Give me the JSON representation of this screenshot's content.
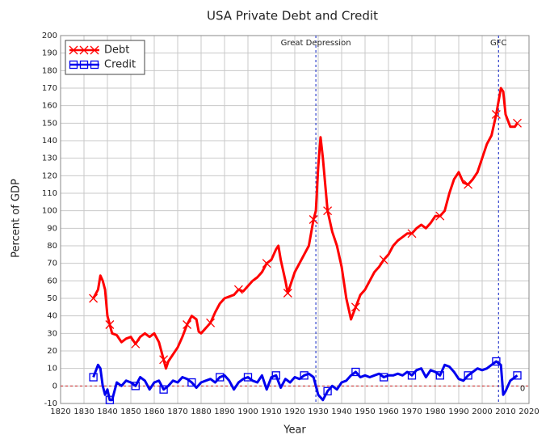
{
  "chart_data": {
    "type": "line",
    "title": "USA Private Debt and Credit",
    "xlabel": "Year",
    "ylabel": "Percent of GDP",
    "xlim": [
      1820,
      2020
    ],
    "xticks": [
      1820,
      1830,
      1840,
      1850,
      1860,
      1870,
      1880,
      1890,
      1900,
      1910,
      1920,
      1930,
      1940,
      1950,
      1960,
      1970,
      1980,
      1990,
      2000,
      2010,
      2020
    ],
    "ylim": [
      -10,
      200
    ],
    "yticks": [
      -10,
      0,
      10,
      20,
      30,
      40,
      50,
      60,
      70,
      80,
      90,
      100,
      110,
      120,
      130,
      140,
      150,
      160,
      170,
      180,
      190,
      200
    ],
    "grid": true,
    "legend": "upper left",
    "vlines": [
      {
        "x": 1929,
        "label": "Great Depression",
        "color": "#3344cc"
      },
      {
        "x": 2007,
        "label": "GFC",
        "color": "#3344cc"
      }
    ],
    "hlines": [
      {
        "y": 0,
        "label": "0",
        "color": "#cc2222"
      }
    ],
    "series": [
      {
        "name": "Debt",
        "color": "#ff0000",
        "marker": "x",
        "x": [
          1834,
          1836,
          1837,
          1838,
          1839,
          1840,
          1841,
          1842,
          1844,
          1846,
          1848,
          1850,
          1852,
          1854,
          1856,
          1858,
          1860,
          1862,
          1864,
          1865,
          1866,
          1868,
          1870,
          1872,
          1874,
          1876,
          1878,
          1879,
          1880,
          1882,
          1884,
          1886,
          1888,
          1890,
          1892,
          1894,
          1896,
          1898,
          1900,
          1902,
          1904,
          1906,
          1908,
          1910,
          1912,
          1913,
          1914,
          1916,
          1917,
          1918,
          1920,
          1922,
          1924,
          1926,
          1928,
          1929,
          1930,
          1931,
          1932,
          1933,
          1934,
          1936,
          1938,
          1940,
          1942,
          1944,
          1946,
          1948,
          1950,
          1952,
          1954,
          1956,
          1958,
          1960,
          1962,
          1964,
          1966,
          1968,
          1970,
          1972,
          1974,
          1976,
          1978,
          1980,
          1982,
          1984,
          1986,
          1988,
          1990,
          1992,
          1994,
          1996,
          1998,
          2000,
          2002,
          2004,
          2006,
          2008,
          2009,
          2010,
          2012,
          2014,
          2015
        ],
        "values": [
          50,
          55,
          63,
          60,
          55,
          40,
          35,
          30,
          29,
          25,
          27,
          28,
          24,
          28,
          30,
          28,
          30,
          25,
          15,
          10,
          14,
          18,
          22,
          28,
          35,
          40,
          38,
          31,
          30,
          33,
          36,
          42,
          47,
          50,
          51,
          52,
          55,
          54,
          57,
          60,
          62,
          65,
          70,
          72,
          78,
          80,
          72,
          60,
          53,
          57,
          65,
          70,
          75,
          80,
          95,
          100,
          125,
          142,
          130,
          115,
          100,
          88,
          80,
          68,
          50,
          38,
          45,
          52,
          55,
          60,
          65,
          68,
          72,
          75,
          80,
          83,
          85,
          87,
          87,
          90,
          92,
          90,
          93,
          97,
          97,
          100,
          110,
          118,
          122,
          116,
          115,
          118,
          122,
          130,
          138,
          143,
          155,
          170,
          168,
          155,
          148,
          148,
          150
        ]
      },
      {
        "name": "Credit",
        "color": "#0000ee",
        "marker": "s",
        "x": [
          1834,
          1836,
          1837,
          1838,
          1839,
          1840,
          1841,
          1842,
          1844,
          1846,
          1848,
          1850,
          1852,
          1854,
          1856,
          1858,
          1860,
          1862,
          1864,
          1866,
          1868,
          1870,
          1872,
          1874,
          1876,
          1878,
          1880,
          1882,
          1884,
          1886,
          1888,
          1890,
          1892,
          1894,
          1896,
          1898,
          1900,
          1902,
          1904,
          1906,
          1908,
          1910,
          1912,
          1914,
          1916,
          1918,
          1920,
          1922,
          1924,
          1926,
          1928,
          1929,
          1930,
          1932,
          1934,
          1936,
          1938,
          1940,
          1942,
          1944,
          1946,
          1948,
          1950,
          1952,
          1954,
          1956,
          1958,
          1960,
          1962,
          1964,
          1966,
          1968,
          1970,
          1972,
          1974,
          1976,
          1978,
          1980,
          1982,
          1984,
          1986,
          1988,
          1990,
          1992,
          1994,
          1996,
          1998,
          2000,
          2002,
          2004,
          2006,
          2008,
          2009,
          2010,
          2012,
          2014,
          2015
        ],
        "values": [
          5,
          12,
          10,
          0,
          -5,
          -2,
          -8,
          -8,
          2,
          0,
          3,
          2,
          0,
          5,
          3,
          -2,
          2,
          3,
          -2,
          0,
          3,
          2,
          5,
          4,
          2,
          -1,
          2,
          3,
          4,
          2,
          5,
          6,
          3,
          -2,
          2,
          4,
          5,
          3,
          2,
          6,
          -2,
          5,
          6,
          -1,
          4,
          2,
          5,
          4,
          6,
          7,
          5,
          0,
          -5,
          -8,
          -3,
          0,
          -2,
          2,
          3,
          6,
          8,
          5,
          6,
          5,
          6,
          7,
          5,
          6,
          6,
          7,
          6,
          8,
          6,
          9,
          10,
          5,
          9,
          8,
          6,
          12,
          11,
          8,
          4,
          3,
          6,
          8,
          10,
          9,
          10,
          12,
          14,
          12,
          -5,
          -3,
          3,
          5,
          6
        ]
      }
    ]
  }
}
